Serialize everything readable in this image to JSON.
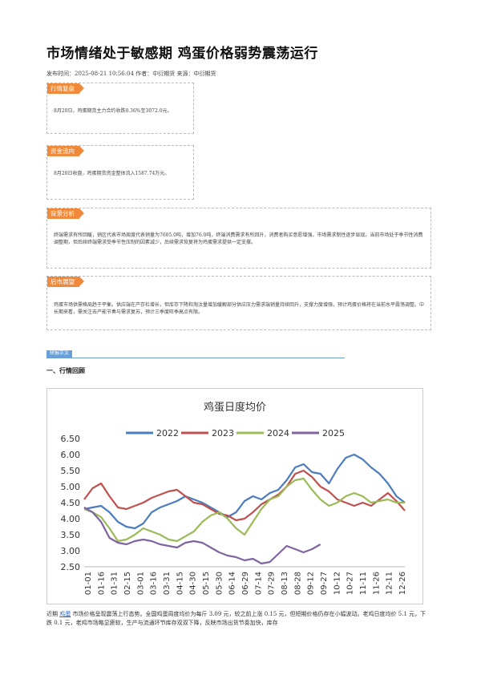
{
  "article": {
    "title": "市场情绪处于敏感期 鸡蛋价格弱势震荡运行",
    "meta": "发布时间：2025-08-21 10:56:04 作者：中衍期货 来源：中衍期货"
  },
  "boxes": [
    {
      "tag": "行情复盘",
      "text": "8月20日，鸡蛋期货主力合约收跌0.36%至3072.0元。"
    },
    {
      "tag": "资金流向",
      "text": "8月20日收盘，鸡蛋期货资金整体流入1587.74万元。"
    },
    {
      "tag": "背景分析",
      "text": "终端需求有所回暖，销区代表市场周度代表销量为7605.0吨，增加76.0吨，终端消费需求有所回升，消费者购买意愿增强，市场需求制性逐步显现。当前市场处于季节性消费调整期，但后续终端需求受季节性压制的因素减少，后续需求恢复将为鸡蛋需求提供一定支撑。"
    },
    {
      "tag": "后市展望",
      "text": "鸡蛋市场供需格局趋于平衡。供应端在产存栏增长，但库存下降和淘汰量增加缓解部分供应压力需求端销量持续回升，支撑力度增强，预计鸡蛋价格将在当前水平震荡调整。中长期来看，需关注去产能节奏与需求复苏，预计三季度旺季高点有限。"
    }
  ],
  "section": {
    "tag": "研报正文",
    "heading": "一、行情回顾"
  },
  "chart_data": {
    "type": "line",
    "title": "鸡蛋日度均价",
    "series_names": [
      "2022",
      "2023",
      "2024",
      "2025"
    ],
    "colors": [
      "#4a7cc0",
      "#c0504d",
      "#9bbb59",
      "#8064a2"
    ],
    "ylim": [
      2.5,
      6.5
    ],
    "yticks": [
      "6.50",
      "6.00",
      "5.50",
      "5.00",
      "4.50",
      "4.00",
      "3.50",
      "3.00",
      "2.50"
    ],
    "xticks": [
      "01-01",
      "01-16",
      "01-31",
      "02-15",
      "03-01",
      "03-16",
      "03-31",
      "04-15",
      "04-30",
      "05-15",
      "05-30",
      "06-14",
      "06-29",
      "07-14",
      "07-29",
      "08-13",
      "08-28",
      "09-12",
      "09-27",
      "10-12",
      "10-27",
      "11-11",
      "11-26",
      "12-11",
      "12-26"
    ],
    "series": [
      {
        "name": "2022",
        "values": [
          4.3,
          4.35,
          4.4,
          4.2,
          3.9,
          3.75,
          3.7,
          3.85,
          4.2,
          4.35,
          4.45,
          4.55,
          4.7,
          4.6,
          4.5,
          4.35,
          4.2,
          4.05,
          4.2,
          4.55,
          4.7,
          4.6,
          4.8,
          4.9,
          5.2,
          5.6,
          5.7,
          5.45,
          5.4,
          5.1,
          5.55,
          5.9,
          6.0,
          5.85,
          5.6,
          5.4,
          5.1,
          4.7,
          4.5
        ]
      },
      {
        "name": "2023",
        "values": [
          4.6,
          4.95,
          5.1,
          4.7,
          4.35,
          4.3,
          4.4,
          4.5,
          4.65,
          4.75,
          4.85,
          4.9,
          4.7,
          4.5,
          4.45,
          4.3,
          4.15,
          4.1,
          3.95,
          4.0,
          4.2,
          4.45,
          4.6,
          4.75,
          5.0,
          5.4,
          5.5,
          5.3,
          5.0,
          4.85,
          4.6,
          4.5,
          4.4,
          4.5,
          4.4,
          4.6,
          4.8,
          4.55,
          4.25
        ]
      },
      {
        "name": "2024",
        "values": [
          4.3,
          4.2,
          4.05,
          3.7,
          3.3,
          3.35,
          3.5,
          3.7,
          3.6,
          3.5,
          3.35,
          3.3,
          3.45,
          3.6,
          3.9,
          4.1,
          4.2,
          4.0,
          3.7,
          3.5,
          3.9,
          4.3,
          4.6,
          4.7,
          5.0,
          5.2,
          5.25,
          4.9,
          4.6,
          4.4,
          4.5,
          4.7,
          4.8,
          4.7,
          4.5,
          4.55,
          4.6,
          4.5,
          4.5
        ]
      },
      {
        "name": "2025",
        "values": [
          4.35,
          4.2,
          3.9,
          3.4,
          3.25,
          3.2,
          3.3,
          3.35,
          3.3,
          3.2,
          3.15,
          3.1,
          3.25,
          3.3,
          3.25,
          3.1,
          2.95,
          2.85,
          2.8,
          2.7,
          2.75,
          2.6,
          2.65,
          2.9,
          3.15,
          3.05,
          2.95,
          3.05,
          3.2
        ]
      }
    ]
  },
  "paragraph": {
    "lead": "近期",
    "link": "鸡蛋",
    "text": "市场价格呈现震荡上行态势。全国鸡蛋周度均价为每斤 3.09 元，较之前上涨 0.15 元，但短期价格仍存在小幅波动。老鸡日度均价 5.1 元，下跌 0.1 元，老鸡市场略显疲软，生产与流通环节库存双双下降，反映市场出货节奏加快，库存"
  }
}
